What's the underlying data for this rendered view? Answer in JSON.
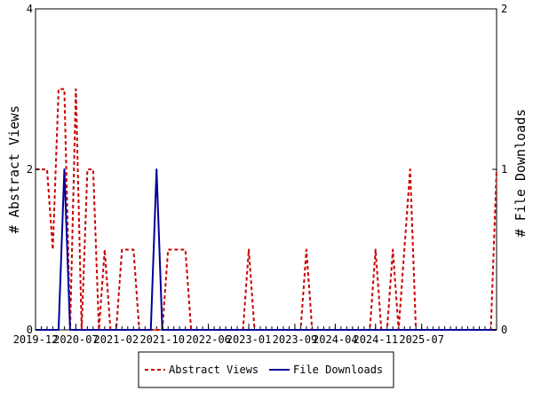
{
  "chart_data": {
    "type": "line",
    "title": "",
    "ylabel_left": "# Abstract Views",
    "ylabel_right": "# File Downloads",
    "ylim_left": [
      0,
      4
    ],
    "ylim_right": [
      0,
      2
    ],
    "yticks_left": [
      "0",
      "2",
      "4"
    ],
    "yticks_right": [
      "0",
      "1",
      "2"
    ],
    "xlim": [
      0,
      80
    ],
    "x_tick_labels": [
      "2019-12",
      "2020-07",
      "2021-02",
      "2021-10",
      "2022-06",
      "2023-01",
      "2023-09",
      "2024-04",
      "2024-11",
      "2025-07"
    ],
    "x_tick_months": [
      0,
      7,
      14,
      22,
      30,
      37,
      45,
      52,
      59,
      67
    ],
    "legend_position": "bottom",
    "series": [
      {
        "name": "Abstract Views",
        "axis": "left",
        "color": "#cc0000",
        "style": "dashed",
        "x": [
          0,
          2,
          3,
          4,
          5,
          6,
          7,
          8,
          9,
          10,
          11,
          12,
          13,
          14,
          15,
          16,
          17,
          18,
          19,
          20,
          21,
          22,
          23,
          24,
          25,
          26,
          27,
          28,
          29,
          30,
          31,
          32,
          33,
          34,
          35,
          36,
          37,
          38,
          39,
          40,
          41,
          42,
          43,
          44,
          45,
          46,
          47,
          48,
          49,
          50,
          51,
          52,
          53,
          54,
          55,
          56,
          57,
          58,
          59,
          60,
          61,
          62,
          63,
          64,
          65,
          66,
          67,
          68,
          69,
          70,
          71,
          72,
          73,
          74,
          75,
          76,
          77,
          78,
          79,
          80
        ],
        "values": [
          2,
          2,
          1,
          3,
          3,
          0,
          3,
          0,
          2,
          2,
          0,
          1,
          0,
          0,
          1,
          1,
          1,
          0,
          0,
          0,
          0,
          0,
          1,
          1,
          1,
          1,
          0,
          0,
          0,
          0,
          0,
          0,
          0,
          0,
          0,
          0,
          1,
          0,
          0,
          0,
          0,
          0,
          0,
          0,
          0,
          0,
          1,
          0,
          0,
          0,
          0,
          0,
          0,
          0,
          0,
          0,
          0,
          0,
          1,
          0,
          0,
          1,
          0,
          1,
          2,
          0,
          0,
          0,
          0,
          0,
          0,
          0,
          0,
          0,
          0,
          0,
          0,
          0,
          0,
          2
        ]
      },
      {
        "name": "File Downloads",
        "axis": "right",
        "color": "#000099",
        "style": "solid",
        "x": [
          0,
          4,
          5,
          6,
          7,
          8,
          9,
          10,
          11,
          12,
          13,
          14,
          15,
          16,
          17,
          18,
          19,
          20,
          21,
          22,
          23,
          24,
          80
        ],
        "values": [
          0,
          0,
          1,
          0,
          0,
          0,
          0,
          0,
          0,
          0,
          0,
          0,
          0,
          0,
          0,
          0,
          0,
          0,
          1,
          0,
          0,
          0,
          0
        ]
      }
    ]
  }
}
